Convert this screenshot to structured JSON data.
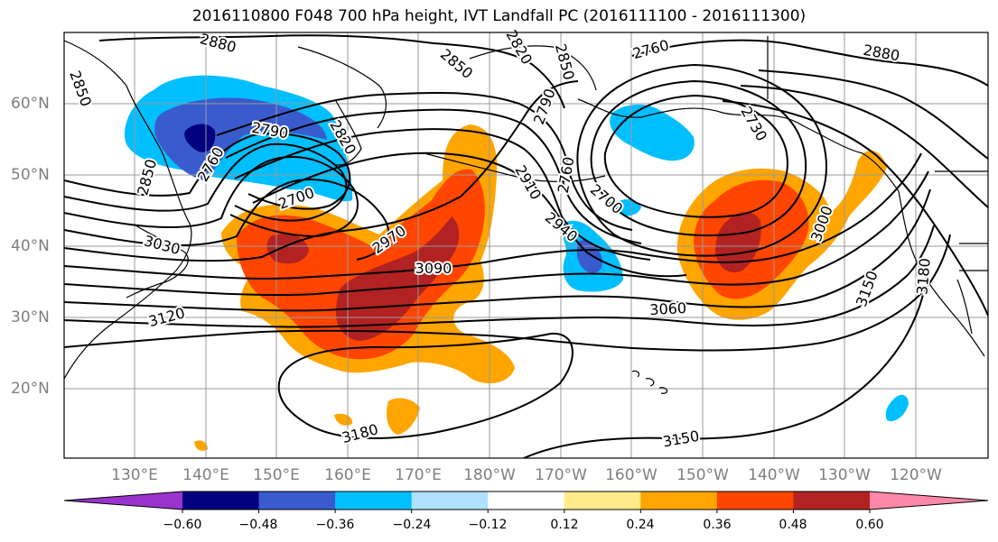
{
  "title": "2016110800 F048 700 hPa height, IVT Landfall PC (2016111100 - 2016111300)",
  "latitude_labels": [
    "60°N",
    "50°N",
    "40°N",
    "30°N",
    "20°N"
  ],
  "longitude_labels": [
    "130°E",
    "140°E",
    "150°E",
    "160°E",
    "170°E",
    "180°W",
    "170°W",
    "160°W",
    "150°W",
    "140°W",
    "130°W",
    "120°W"
  ],
  "height_contour_labels": [
    {
      "id": "a",
      "text": "2880"
    },
    {
      "id": "b",
      "text": "2850"
    },
    {
      "id": "c",
      "text": "2820"
    },
    {
      "id": "d",
      "text": "2850"
    },
    {
      "id": "e",
      "text": "2760"
    },
    {
      "id": "f",
      "text": "2880"
    },
    {
      "id": "g",
      "text": "2850"
    },
    {
      "id": "h",
      "text": "2790"
    },
    {
      "id": "i",
      "text": "2820"
    },
    {
      "id": "j",
      "text": "2760"
    },
    {
      "id": "k",
      "text": "2700"
    },
    {
      "id": "l",
      "text": "2790"
    },
    {
      "id": "m",
      "text": "2850"
    },
    {
      "id": "n",
      "text": "2760"
    },
    {
      "id": "o",
      "text": "2730"
    },
    {
      "id": "p",
      "text": "2910"
    },
    {
      "id": "q",
      "text": "2700"
    },
    {
      "id": "r",
      "text": "3000"
    },
    {
      "id": "s",
      "text": "2970"
    },
    {
      "id": "t",
      "text": "3030"
    },
    {
      "id": "u",
      "text": "2940"
    },
    {
      "id": "v",
      "text": "3090"
    },
    {
      "id": "w",
      "text": "3150"
    },
    {
      "id": "x",
      "text": "3180"
    },
    {
      "id": "y",
      "text": "3120"
    },
    {
      "id": "z",
      "text": "3060"
    },
    {
      "id": "aa",
      "text": "3180"
    },
    {
      "id": "bb",
      "text": "3150"
    }
  ],
  "colorbar": {
    "colors": [
      "#9933cc",
      "#000080",
      "#3a5bcd",
      "#00bfff",
      "#b0e2ff",
      "#ffffff",
      "#ffeb8a",
      "#ffa500",
      "#ff4500",
      "#b22222",
      "#ff88aa"
    ],
    "tick_labels": [
      "−0.60",
      "−0.48",
      "−0.36",
      "−0.24",
      "−0.12",
      "0.12",
      "0.24",
      "0.36",
      "0.48",
      "0.60"
    ]
  },
  "ivt_pc_colors": {
    "pos_024": "#ffa500",
    "pos_036": "#ff4500",
    "pos_048": "#b22222",
    "neg_024": "#00bfff",
    "neg_036": "#3a5bcd",
    "neg_048": "#000080"
  }
}
